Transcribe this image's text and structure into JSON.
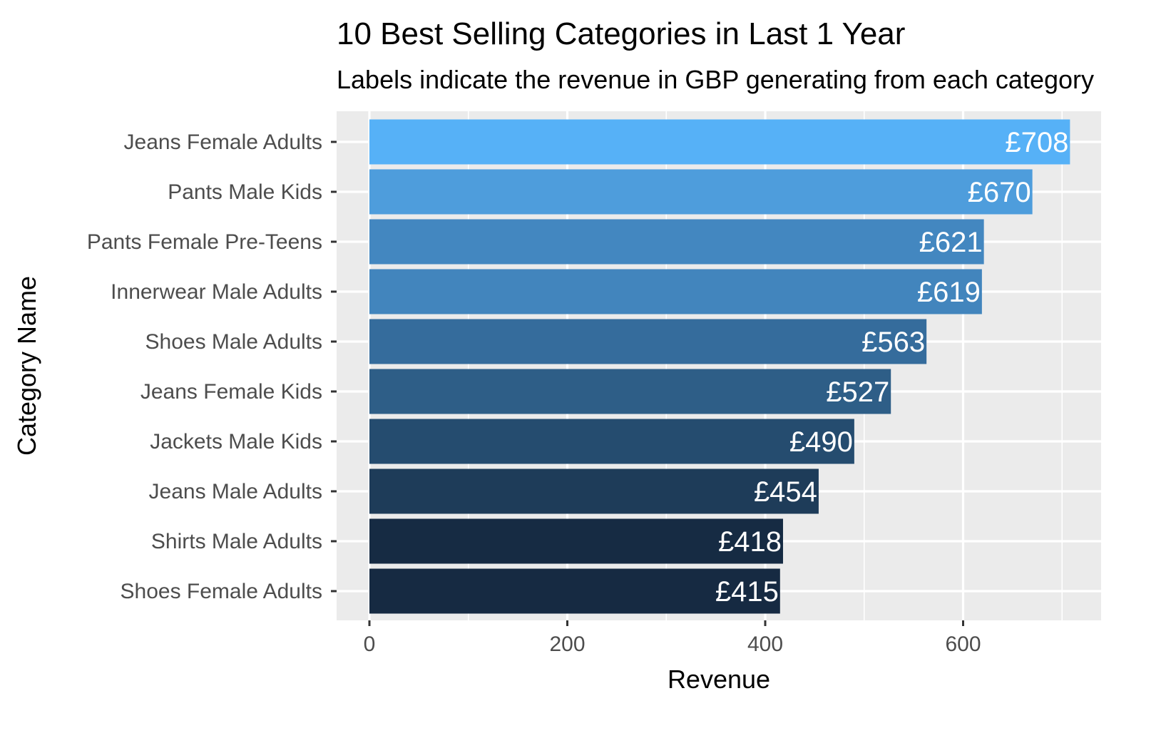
{
  "chart_data": {
    "type": "bar",
    "orientation": "horizontal",
    "title": "10 Best Selling Categories in Last 1 Year",
    "subtitle": "Labels indicate the revenue in GBP generating from each category",
    "xlabel": "Revenue",
    "ylabel": "Category Name",
    "xlim": [
      0,
      740
    ],
    "x_ticks": [
      0,
      200,
      400,
      600
    ],
    "grid": true,
    "categories": [
      "Jeans Female Adults",
      "Pants Male Kids",
      "Pants Female Pre-Teens",
      "Innerwear Male Adults",
      "Shoes Male Adults",
      "Jeans Female Kids",
      "Jackets Male Kids",
      "Jeans Male Adults",
      "Shirts Male Adults",
      "Shoes Female Adults"
    ],
    "values": [
      708,
      670,
      621,
      619,
      563,
      527,
      490,
      454,
      418,
      415
    ],
    "value_labels": [
      "£708",
      "£670",
      "£621",
      "£619",
      "£563",
      "£527",
      "£490",
      "£454",
      "£418",
      "£415"
    ],
    "bar_colors": [
      "#56B1F7",
      "#4E9DDC",
      "#4387C0",
      "#4285BD",
      "#356C9C",
      "#2E5E87",
      "#254C6F",
      "#1E3C59",
      "#162B43",
      "#162A42"
    ],
    "panel_background": "#EBEBEB",
    "grid_color": "#FFFFFF"
  }
}
